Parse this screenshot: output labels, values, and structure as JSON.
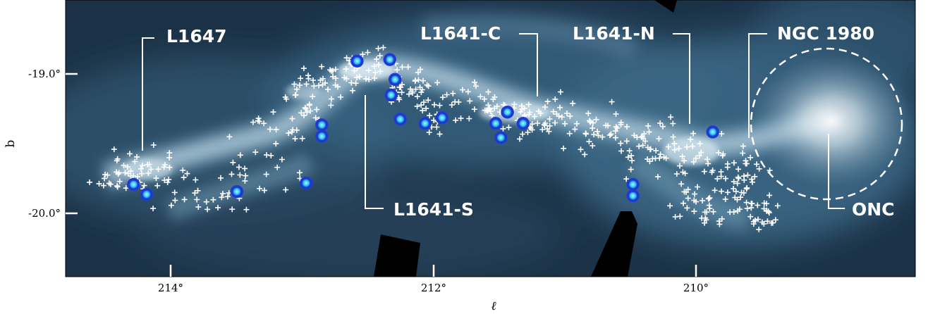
{
  "figure": {
    "x_axis_label": "ℓ",
    "y_axis_label": "b",
    "x_ticks": [
      {
        "value": 214,
        "label": "214°"
      },
      {
        "value": 212,
        "label": "212°"
      },
      {
        "value": 210,
        "label": "210°"
      }
    ],
    "y_ticks": [
      {
        "value": -19.0,
        "label": "-19.0°"
      },
      {
        "value": -20.0,
        "label": "-20.0°"
      }
    ],
    "x_range": [
      214.8,
      208.3
    ],
    "y_range": [
      -20.45,
      -18.5
    ],
    "regions": [
      {
        "key": "l1647",
        "label": "L1647"
      },
      {
        "key": "l1641c",
        "label": "L1641-C"
      },
      {
        "key": "l1641n",
        "label": "L1641-N"
      },
      {
        "key": "ngc1980",
        "label": "NGC 1980"
      },
      {
        "key": "l1641s",
        "label": "L1641-S"
      },
      {
        "key": "onc",
        "label": "ONC"
      }
    ],
    "colors": {
      "background_dark": "#16293d",
      "cloud_mid": "#4d7794",
      "cloud_bright": "#cfe1ea",
      "marker_ring": "#1f3ed6",
      "marker_center": "#5fe0ff",
      "yso_cross": "#ffffff",
      "label_text": "#ffffff"
    },
    "markers": [
      {
        "l": 214.28,
        "b": -19.8
      },
      {
        "l": 214.18,
        "b": -19.87
      },
      {
        "l": 213.49,
        "b": -19.85
      },
      {
        "l": 212.96,
        "b": -19.79
      },
      {
        "l": 212.84,
        "b": -19.38
      },
      {
        "l": 212.84,
        "b": -19.46
      },
      {
        "l": 212.57,
        "b": -18.93
      },
      {
        "l": 212.32,
        "b": -18.92
      },
      {
        "l": 212.28,
        "b": -19.06
      },
      {
        "l": 212.31,
        "b": -19.17
      },
      {
        "l": 212.24,
        "b": -19.34
      },
      {
        "l": 212.05,
        "b": -19.37
      },
      {
        "l": 211.92,
        "b": -19.33
      },
      {
        "l": 211.51,
        "b": -19.37
      },
      {
        "l": 211.42,
        "b": -19.29
      },
      {
        "l": 211.47,
        "b": -19.47
      },
      {
        "l": 211.3,
        "b": -19.37
      },
      {
        "l": 210.46,
        "b": -19.8
      },
      {
        "l": 210.46,
        "b": -19.88
      },
      {
        "l": 209.85,
        "b": -19.43
      }
    ]
  }
}
